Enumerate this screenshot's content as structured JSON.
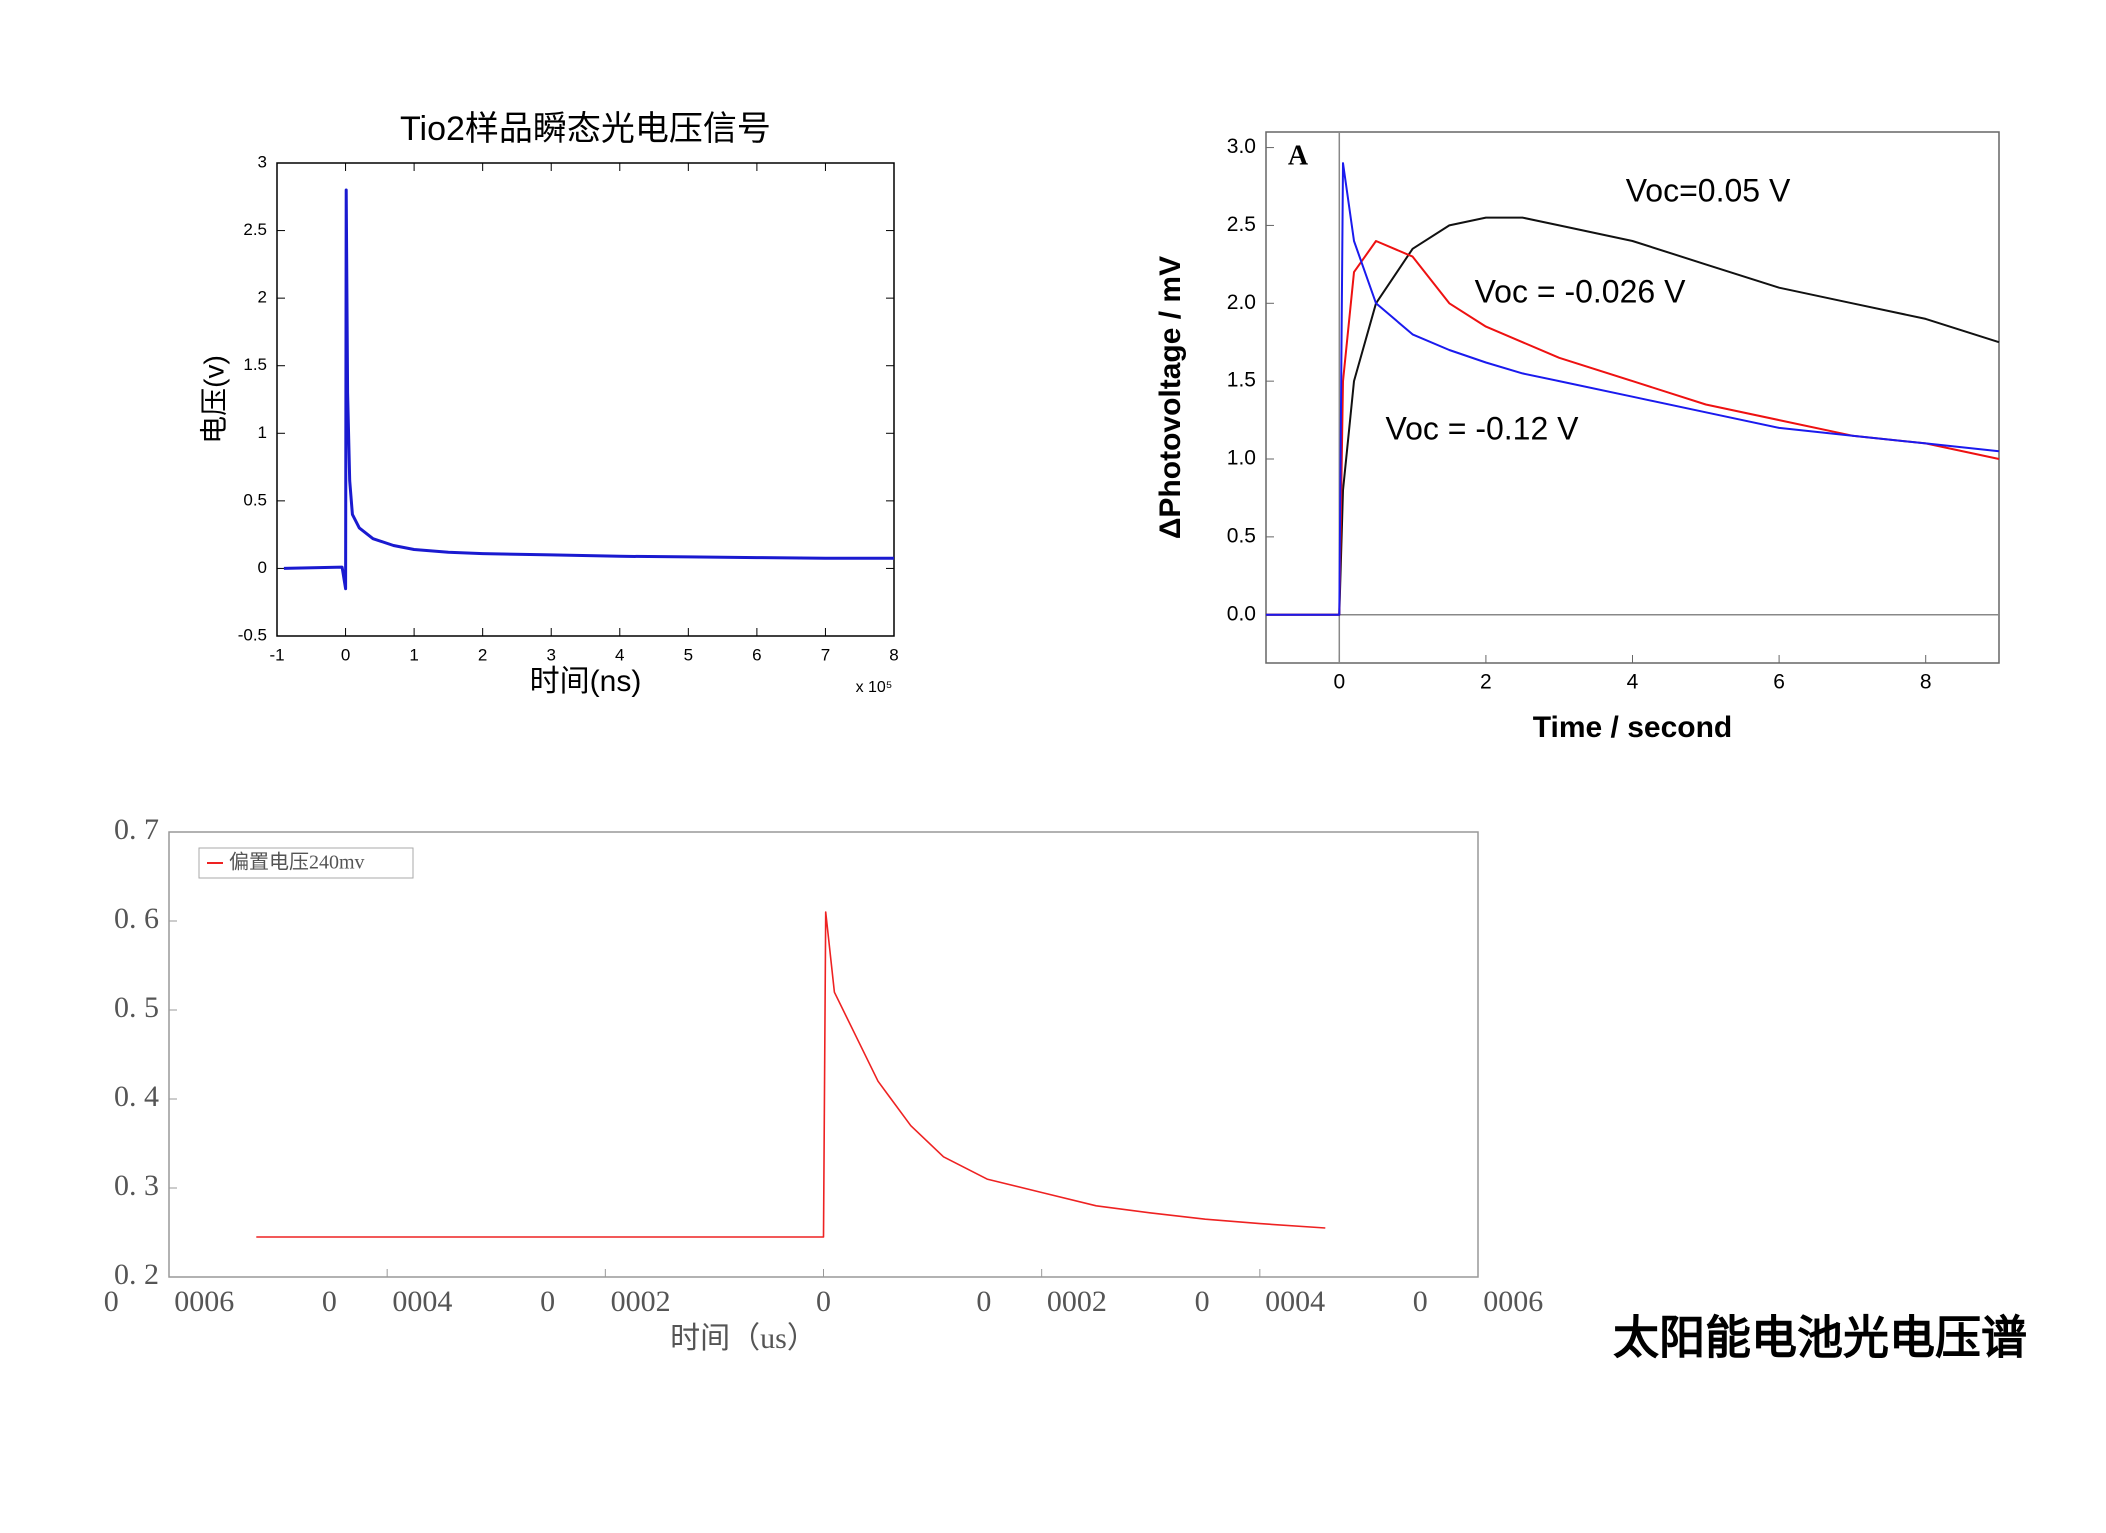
{
  "caption": "太阳能电池光电压谱",
  "chart_data": [
    {
      "type": "line",
      "title": "Tio2样品瞬态光电压信号",
      "xlabel": "时间(ns)",
      "ylabel": "电压(v)",
      "x_scale_label": "x 10⁵",
      "xlim": [
        -1,
        8
      ],
      "xticks": [
        -1,
        0,
        1,
        2,
        3,
        4,
        5,
        6,
        7,
        8
      ],
      "ylim": [
        -0.5,
        3
      ],
      "yticks": [
        -0.5,
        0,
        0.5,
        1,
        1.5,
        2,
        2.5,
        3
      ],
      "grid": false,
      "legend": false,
      "x": [
        -0.9,
        -0.05,
        0,
        0.01,
        0.03,
        0.06,
        0.1,
        0.2,
        0.4,
        0.7,
        1,
        1.5,
        2,
        3,
        4,
        5,
        6,
        7,
        8
      ],
      "series": [
        {
          "name": null,
          "color": "#1a1ad0",
          "values": [
            0,
            0.01,
            -0.15,
            2.8,
            1.3,
            0.65,
            0.4,
            0.3,
            0.22,
            0.17,
            0.14,
            0.12,
            0.11,
            0.1,
            0.09,
            0.085,
            0.08,
            0.075,
            0.075
          ]
        }
      ]
    },
    {
      "type": "line",
      "panel_label": "A",
      "xlabel": "Time / second",
      "ylabel": "ΔPhotovoltage / mV",
      "xlim": [
        -1,
        9
      ],
      "xticks": [
        0,
        2,
        4,
        6,
        8
      ],
      "ylim": [
        -0.31,
        3.1
      ],
      "yticks": [
        {
          "value": 0,
          "label": "0.0"
        },
        0.5,
        {
          "value": 1,
          "label": "1.0"
        },
        1.5,
        {
          "value": 2,
          "label": "2.0"
        },
        2.5,
        {
          "value": 3,
          "label": "3.0"
        }
      ],
      "grid": false,
      "zero_lines": true,
      "legend": false,
      "x": [
        -1,
        -0.5,
        0,
        0.05,
        0.2,
        0.5,
        1,
        1.5,
        2,
        2.5,
        3,
        4,
        5,
        6,
        7,
        8,
        9
      ],
      "series": [
        {
          "name": "Voc=0.05 V",
          "color": "#111111",
          "values": [
            0,
            0,
            0,
            0.8,
            1.5,
            2.0,
            2.35,
            2.5,
            2.55,
            2.55,
            2.5,
            2.4,
            2.25,
            2.1,
            2.0,
            1.9,
            1.75
          ]
        },
        {
          "name": "Voc = -0.026 V",
          "color": "#ee1111",
          "values": [
            0,
            0,
            0,
            1.5,
            2.2,
            2.4,
            2.3,
            2.0,
            1.85,
            1.75,
            1.65,
            1.5,
            1.35,
            1.25,
            1.15,
            1.1,
            1.0
          ]
        },
        {
          "name": "Voc = -0.12 V",
          "color": "#1a1aee",
          "values": [
            0,
            0,
            0,
            2.9,
            2.4,
            2.0,
            1.8,
            1.7,
            1.62,
            1.55,
            1.5,
            1.4,
            1.3,
            1.2,
            1.15,
            1.1,
            1.05
          ]
        }
      ]
    },
    {
      "type": "line",
      "xlabel": "时间（us）",
      "xlim": [
        -0.0006,
        0.0006
      ],
      "xticks": [
        {
          "value": -0.0006,
          "label": "0 0006"
        },
        {
          "value": -0.0004,
          "label": "0 0004"
        },
        {
          "value": -0.0002,
          "label": "0 0002"
        },
        0,
        {
          "value": 0.0002,
          "label": "0 0002"
        },
        {
          "value": 0.0004,
          "label": "0 0004"
        },
        {
          "value": 0.0006,
          "label": "0 0006"
        }
      ],
      "ylim": [
        0.2,
        0.7
      ],
      "yticks": [
        {
          "value": 0.2,
          "label": "0. 2"
        },
        {
          "value": 0.3,
          "label": "0. 3"
        },
        {
          "value": 0.4,
          "label": "0. 4"
        },
        {
          "value": 0.5,
          "label": "0. 5"
        },
        {
          "value": 0.6,
          "label": "0. 6"
        },
        {
          "value": 0.7,
          "label": "0. 7"
        }
      ],
      "grid": false,
      "legend": true,
      "legend_position": "upper left",
      "x": [
        -0.00052,
        -0.0004,
        -0.0003,
        -0.0002,
        -0.0001,
        -1e-05,
        0,
        2e-06,
        1e-05,
        3e-05,
        5e-05,
        8e-05,
        0.00011,
        0.00015,
        0.0002,
        0.00025,
        0.0003,
        0.00035,
        0.0004,
        0.00046
      ],
      "series": [
        {
          "name": "偏置电压240mv",
          "color": "#ee2222",
          "values": [
            0.245,
            0.245,
            0.245,
            0.245,
            0.245,
            0.245,
            0.245,
            0.61,
            0.52,
            0.47,
            0.42,
            0.37,
            0.335,
            0.31,
            0.295,
            0.28,
            0.272,
            0.265,
            0.26,
            0.255
          ]
        }
      ]
    }
  ]
}
